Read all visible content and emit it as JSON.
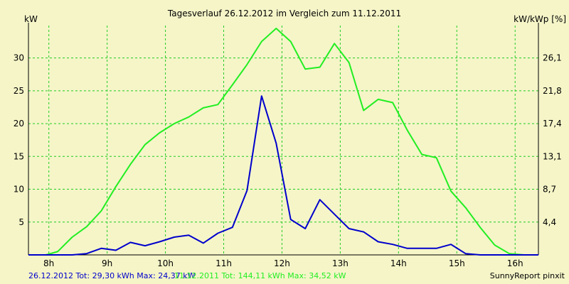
{
  "colors": {
    "background": "#f5f5c8",
    "grid": "#22cc22",
    "series_green": "#22ee22",
    "series_blue": "#0000cc",
    "axis": "#000000"
  },
  "legend": {
    "s1_text": "26.12.2012 Tot: 29,30 kWh Max: 24,37 kW",
    "s2_text": "11.12.2011 Tot: 144,11 kWh Max: 34,52 kW"
  },
  "credit": "SunnyReport pinxit",
  "chart_data": {
    "type": "line",
    "title": "Tagesverlauf 26.12.2012 im Vergleich zum 11.12.2011",
    "ylabel": "kW",
    "ylabel_right": "kW/kWp [%]",
    "xlim": [
      7.65,
      16.4
    ],
    "ylim": [
      0,
      34.5
    ],
    "x_ticks": [
      8,
      9,
      10,
      11,
      12,
      13,
      14,
      15,
      16
    ],
    "x_tick_labels": [
      "8h",
      "9h",
      "10h",
      "11h",
      "12h",
      "13h",
      "14h",
      "15h",
      "16h"
    ],
    "y_ticks": [
      5,
      10,
      15,
      20,
      25,
      30
    ],
    "y_tick_labels": [
      "5",
      "10",
      "15",
      "20",
      "25",
      "30"
    ],
    "y2_ticks": [
      4.4,
      8.7,
      13.1,
      17.4,
      21.8,
      26.1
    ],
    "y2_tick_labels": [
      "4,4",
      "8,7",
      "13,1",
      "17,4",
      "21,8",
      "26,1"
    ],
    "y2_values_at_kw": [
      5,
      10,
      15,
      20,
      25,
      30
    ],
    "grid": true,
    "series": [
      {
        "name": "11.12.2011",
        "color": "#22ee22",
        "x": [
          7.65,
          7.95,
          8.15,
          8.4,
          8.65,
          8.9,
          9.15,
          9.4,
          9.65,
          9.9,
          10.15,
          10.4,
          10.65,
          10.9,
          11.15,
          11.4,
          11.65,
          11.9,
          12.15,
          12.4,
          12.65,
          12.9,
          13.15,
          13.4,
          13.65,
          13.9,
          14.15,
          14.4,
          14.65,
          14.9,
          15.15,
          15.4,
          15.65,
          15.9,
          16.15,
          16.4
        ],
        "values": [
          0,
          0,
          0.5,
          2.7,
          4.3,
          6.7,
          10.4,
          13.8,
          16.8,
          18.6,
          20.0,
          21.0,
          22.4,
          22.9,
          25.9,
          29.0,
          32.5,
          34.5,
          32.5,
          28.3,
          28.6,
          32.2,
          29.3,
          22.0,
          23.7,
          23.2,
          19.0,
          15.3,
          14.8,
          9.7,
          7.2,
          4.2,
          1.5,
          0.2,
          0,
          0
        ]
      },
      {
        "name": "26.12.2012",
        "color": "#0000cc",
        "x": [
          7.65,
          8.15,
          8.4,
          8.65,
          8.9,
          9.15,
          9.4,
          9.65,
          9.9,
          10.15,
          10.4,
          10.65,
          10.9,
          11.15,
          11.4,
          11.65,
          11.9,
          12.15,
          12.4,
          12.65,
          12.9,
          13.15,
          13.4,
          13.65,
          13.9,
          14.15,
          14.4,
          14.65,
          14.9,
          15.15,
          15.4,
          15.65,
          15.9,
          16.15,
          16.4
        ],
        "values": [
          0,
          0,
          0,
          0.2,
          1.0,
          0.7,
          1.9,
          1.4,
          2.0,
          2.7,
          3.0,
          1.8,
          3.3,
          4.2,
          9.8,
          24.2,
          17.0,
          5.4,
          4.0,
          8.4,
          6.2,
          4.0,
          3.5,
          2.0,
          1.6,
          1.0,
          1.0,
          1.0,
          1.6,
          0.2,
          0,
          0,
          0,
          0,
          0
        ]
      }
    ]
  }
}
